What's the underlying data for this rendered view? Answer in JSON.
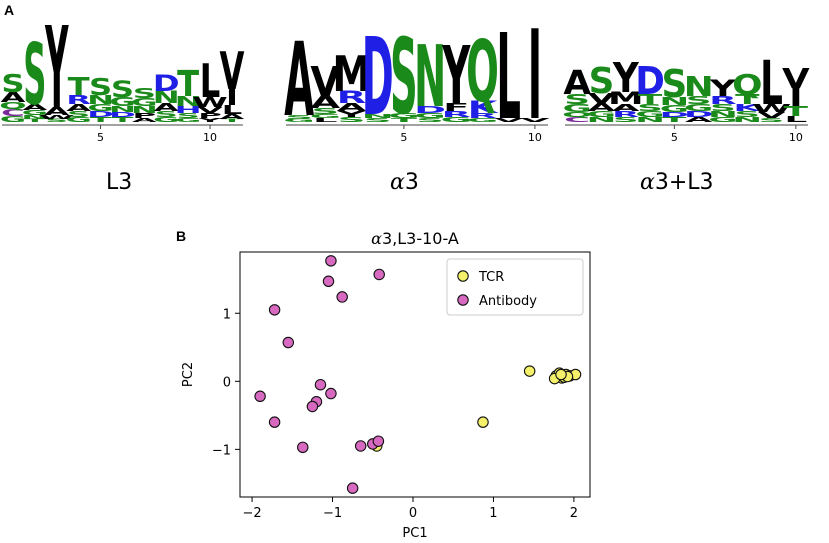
{
  "panel_a_label": "A",
  "panel_b_label": "B",
  "logos": [
    {
      "caption": "L3",
      "tick_labels": [
        "5",
        "10"
      ],
      "columns": [
        {
          "letters": [
            {
              "c": "S",
              "k": "p",
              "h": 0.18
            },
            {
              "c": "A",
              "k": "h",
              "h": 0.1
            },
            {
              "c": "C",
              "k": "n",
              "h": 0.07
            },
            {
              "c": "Q",
              "k": "p",
              "h": 0.07
            },
            {
              "c": "G",
              "k": "p",
              "h": 0.06
            }
          ]
        },
        {
          "letters": [
            {
              "c": "S",
              "k": "p",
              "h": 0.62
            },
            {
              "c": "A",
              "k": "h",
              "h": 0.06
            },
            {
              "c": "G",
              "k": "p",
              "h": 0.05
            },
            {
              "c": "N",
              "k": "p",
              "h": 0.04
            },
            {
              "c": "T",
              "k": "p",
              "h": 0.03
            }
          ]
        },
        {
          "letters": [
            {
              "c": "Y",
              "k": "h",
              "h": 0.82
            },
            {
              "c": "A",
              "k": "h",
              "h": 0.08
            },
            {
              "c": "W",
              "k": "h",
              "h": 0.04
            },
            {
              "c": "S",
              "k": "p",
              "h": 0.03
            }
          ]
        },
        {
          "letters": [
            {
              "c": "T",
              "k": "p",
              "h": 0.18
            },
            {
              "c": "R",
              "k": "b",
              "h": 0.09
            },
            {
              "c": "A",
              "k": "h",
              "h": 0.07
            },
            {
              "c": "S",
              "k": "p",
              "h": 0.06
            },
            {
              "c": "G",
              "k": "p",
              "h": 0.05
            }
          ]
        },
        {
          "letters": [
            {
              "c": "S",
              "k": "p",
              "h": 0.17
            },
            {
              "c": "N",
              "k": "p",
              "h": 0.09
            },
            {
              "c": "G",
              "k": "p",
              "h": 0.07
            },
            {
              "c": "D",
              "k": "b",
              "h": 0.06
            },
            {
              "c": "T",
              "k": "p",
              "h": 0.05
            }
          ]
        },
        {
          "letters": [
            {
              "c": "S",
              "k": "p",
              "h": 0.16
            },
            {
              "c": "G",
              "k": "p",
              "h": 0.09
            },
            {
              "c": "N",
              "k": "p",
              "h": 0.06
            },
            {
              "c": "T",
              "k": "p",
              "h": 0.05
            },
            {
              "c": "D",
              "k": "b",
              "h": 0.05
            }
          ]
        },
        {
          "letters": [
            {
              "c": "S",
              "k": "p",
              "h": 0.1
            },
            {
              "c": "G",
              "k": "p",
              "h": 0.08
            },
            {
              "c": "N",
              "k": "p",
              "h": 0.07
            },
            {
              "c": "P",
              "k": "h",
              "h": 0.05
            },
            {
              "c": "A",
              "k": "h",
              "h": 0.04
            }
          ]
        },
        {
          "letters": [
            {
              "c": "D",
              "k": "b",
              "h": 0.16
            },
            {
              "c": "N",
              "k": "p",
              "h": 0.12
            },
            {
              "c": "A",
              "k": "h",
              "h": 0.08
            },
            {
              "c": "S",
              "k": "p",
              "h": 0.06
            },
            {
              "c": "G",
              "k": "p",
              "h": 0.05
            }
          ]
        },
        {
          "letters": [
            {
              "c": "T",
              "k": "p",
              "h": 0.26
            },
            {
              "c": "N",
              "k": "p",
              "h": 0.1
            },
            {
              "c": "H",
              "k": "b",
              "h": 0.07
            },
            {
              "c": "S",
              "k": "p",
              "h": 0.05
            },
            {
              "c": "G",
              "k": "p",
              "h": 0.04
            }
          ]
        },
        {
          "letters": [
            {
              "c": "L",
              "k": "h",
              "h": 0.34
            },
            {
              "c": "W",
              "k": "h",
              "h": 0.1
            },
            {
              "c": "V",
              "k": "h",
              "h": 0.06
            },
            {
              "c": "P",
              "k": "h",
              "h": 0.05
            },
            {
              "c": "Y",
              "k": "h",
              "h": 0.04
            }
          ]
        },
        {
          "letters": [
            {
              "c": "V",
              "k": "h",
              "h": 0.38
            },
            {
              "c": "I",
              "k": "h",
              "h": 0.16
            },
            {
              "c": "L",
              "k": "h",
              "h": 0.09
            },
            {
              "c": "A",
              "k": "h",
              "h": 0.05
            },
            {
              "c": "T",
              "k": "p",
              "h": 0.03
            }
          ]
        }
      ]
    },
    {
      "caption_greek": "α",
      "caption": "3",
      "tick_labels": [
        "5",
        "10"
      ],
      "columns": [
        {
          "letters": [
            {
              "c": "A",
              "k": "h",
              "h": 0.74
            },
            {
              "c": "S",
              "k": "p",
              "h": 0.04
            },
            {
              "c": "G",
              "k": "p",
              "h": 0.03
            }
          ]
        },
        {
          "letters": [
            {
              "c": "V",
              "k": "h",
              "h": 0.3
            },
            {
              "c": "A",
              "k": "h",
              "h": 0.12
            },
            {
              "c": "S",
              "k": "p",
              "h": 0.06
            },
            {
              "c": "L",
              "k": "h",
              "h": 0.04
            },
            {
              "c": "G",
              "k": "p",
              "h": 0.04
            }
          ]
        },
        {
          "letters": [
            {
              "c": "M",
              "k": "h",
              "h": 0.36
            },
            {
              "c": "R",
              "k": "b",
              "h": 0.12
            },
            {
              "c": "A",
              "k": "h",
              "h": 0.08
            },
            {
              "c": "Y",
              "k": "h",
              "h": 0.06
            },
            {
              "c": "S",
              "k": "p",
              "h": 0.05
            }
          ]
        },
        {
          "letters": [
            {
              "c": "D",
              "k": "b",
              "h": 0.78
            },
            {
              "c": "S",
              "k": "p",
              "h": 0.04
            },
            {
              "c": "N",
              "k": "p",
              "h": 0.04
            }
          ]
        },
        {
          "letters": [
            {
              "c": "S",
              "k": "p",
              "h": 0.76
            },
            {
              "c": "G",
              "k": "p",
              "h": 0.05
            },
            {
              "c": "T",
              "k": "p",
              "h": 0.04
            }
          ]
        },
        {
          "letters": [
            {
              "c": "N",
              "k": "p",
              "h": 0.62
            },
            {
              "c": "D",
              "k": "b",
              "h": 0.07
            },
            {
              "c": "G",
              "k": "p",
              "h": 0.05
            },
            {
              "c": "S",
              "k": "p",
              "h": 0.04
            }
          ]
        },
        {
          "letters": [
            {
              "c": "Y",
              "k": "h",
              "h": 0.58
            },
            {
              "c": "F",
              "k": "h",
              "h": 0.08
            },
            {
              "c": "R",
              "k": "b",
              "h": 0.06
            },
            {
              "c": "G",
              "k": "p",
              "h": 0.05
            }
          ]
        },
        {
          "letters": [
            {
              "c": "Q",
              "k": "p",
              "h": 0.62
            },
            {
              "c": "K",
              "k": "b",
              "h": 0.12
            },
            {
              "c": "R",
              "k": "b",
              "h": 0.05
            },
            {
              "c": "G",
              "k": "p",
              "h": 0.04
            }
          ]
        },
        {
          "letters": [
            {
              "c": "L",
              "k": "h",
              "h": 0.86
            },
            {
              "c": "V",
              "k": "h",
              "h": 0.04
            }
          ]
        },
        {
          "letters": [
            {
              "c": "I",
              "k": "h",
              "h": 0.9
            },
            {
              "c": "V",
              "k": "h",
              "h": 0.04
            }
          ]
        }
      ]
    },
    {
      "caption_greek": "α",
      "caption": "3+L3",
      "tick_labels": [
        "5",
        "10"
      ],
      "columns": [
        {
          "letters": [
            {
              "c": "A",
              "k": "h",
              "h": 0.24
            },
            {
              "c": "S",
              "k": "p",
              "h": 0.1
            },
            {
              "c": "G",
              "k": "p",
              "h": 0.08
            },
            {
              "c": "C",
              "k": "n",
              "h": 0.05
            },
            {
              "c": "Q",
              "k": "p",
              "h": 0.05
            }
          ]
        },
        {
          "letters": [
            {
              "c": "S",
              "k": "p",
              "h": 0.26
            },
            {
              "c": "V",
              "k": "h",
              "h": 0.1
            },
            {
              "c": "A",
              "k": "h",
              "h": 0.08
            },
            {
              "c": "G",
              "k": "p",
              "h": 0.06
            },
            {
              "c": "N",
              "k": "p",
              "h": 0.05
            }
          ]
        },
        {
          "letters": [
            {
              "c": "Y",
              "k": "h",
              "h": 0.3
            },
            {
              "c": "M",
              "k": "h",
              "h": 0.12
            },
            {
              "c": "A",
              "k": "h",
              "h": 0.07
            },
            {
              "c": "R",
              "k": "b",
              "h": 0.06
            },
            {
              "c": "S",
              "k": "p",
              "h": 0.05
            }
          ]
        },
        {
          "letters": [
            {
              "c": "D",
              "k": "b",
              "h": 0.28
            },
            {
              "c": "T",
              "k": "p",
              "h": 0.1
            },
            {
              "c": "S",
              "k": "p",
              "h": 0.07
            },
            {
              "c": "G",
              "k": "p",
              "h": 0.06
            },
            {
              "c": "N",
              "k": "p",
              "h": 0.05
            }
          ]
        },
        {
          "letters": [
            {
              "c": "S",
              "k": "p",
              "h": 0.28
            },
            {
              "c": "N",
              "k": "p",
              "h": 0.08
            },
            {
              "c": "G",
              "k": "p",
              "h": 0.07
            },
            {
              "c": "T",
              "k": "p",
              "h": 0.05
            },
            {
              "c": "D",
              "k": "b",
              "h": 0.05
            }
          ]
        },
        {
          "letters": [
            {
              "c": "N",
              "k": "p",
              "h": 0.2
            },
            {
              "c": "S",
              "k": "p",
              "h": 0.08
            },
            {
              "c": "G",
              "k": "p",
              "h": 0.07
            },
            {
              "c": "D",
              "k": "b",
              "h": 0.06
            },
            {
              "c": "A",
              "k": "h",
              "h": 0.05
            }
          ]
        },
        {
          "letters": [
            {
              "c": "Y",
              "k": "h",
              "h": 0.16
            },
            {
              "c": "R",
              "k": "b",
              "h": 0.08
            },
            {
              "c": "S",
              "k": "p",
              "h": 0.07
            },
            {
              "c": "N",
              "k": "p",
              "h": 0.06
            },
            {
              "c": "G",
              "k": "p",
              "h": 0.05
            }
          ]
        },
        {
          "letters": [
            {
              "c": "Q",
              "k": "p",
              "h": 0.2
            },
            {
              "c": "T",
              "k": "p",
              "h": 0.1
            },
            {
              "c": "K",
              "k": "b",
              "h": 0.07
            },
            {
              "c": "S",
              "k": "p",
              "h": 0.06
            },
            {
              "c": "N",
              "k": "p",
              "h": 0.05
            }
          ]
        },
        {
          "letters": [
            {
              "c": "L",
              "k": "h",
              "h": 0.44
            },
            {
              "c": "W",
              "k": "h",
              "h": 0.08
            },
            {
              "c": "V",
              "k": "h",
              "h": 0.06
            },
            {
              "c": "S",
              "k": "p",
              "h": 0.04
            }
          ]
        },
        {
          "letters": [
            {
              "c": "T",
              "k": "p",
              "h": 0.1
            },
            {
              "c": "V",
              "k": "h",
              "h": 0.2
            },
            {
              "c": "I",
              "k": "h",
              "h": 0.18
            },
            {
              "c": "L",
              "k": "h",
              "h": 0.06
            }
          ]
        }
      ]
    }
  ],
  "colors": {
    "hydrophobic": "#000000",
    "polar": "#1a8a1a",
    "basic": "#1f1fe6",
    "acidic": "#c81e1e",
    "neutral": "#7a2a9a",
    "tcr_fill": "#f5f06a",
    "antibody_fill": "#d869c0",
    "marker_edge": "#111111"
  },
  "chart_data": {
    "type": "scatter",
    "title_greek": "α",
    "title": "3,L3-10-A",
    "xlabel": "PC1",
    "ylabel": "PC2",
    "xlim": [
      -2.15,
      2.2
    ],
    "ylim": [
      -1.7,
      1.9
    ],
    "xticks": [
      -2,
      -1,
      0,
      1,
      2
    ],
    "xtick_labels": [
      "−2",
      "−1",
      "0",
      "1",
      "2"
    ],
    "yticks": [
      -1,
      0,
      1
    ],
    "ytick_labels": [
      "−1",
      "0",
      "1"
    ],
    "legend_position": "top-right",
    "grid": false,
    "series": [
      {
        "name": "TCR",
        "color_key": "tcr_fill",
        "points": [
          [
            1.45,
            0.15
          ],
          [
            0.87,
            -0.6
          ],
          [
            1.78,
            0.08
          ],
          [
            1.82,
            0.12
          ],
          [
            1.85,
            0.05
          ],
          [
            1.9,
            0.1
          ],
          [
            1.88,
            0.06
          ],
          [
            1.95,
            0.08
          ],
          [
            2.02,
            0.1
          ],
          [
            1.76,
            0.04
          ],
          [
            1.92,
            0.07
          ],
          [
            1.84,
            0.1
          ],
          [
            -0.45,
            -0.95
          ]
        ]
      },
      {
        "name": "Antibody",
        "color_key": "antibody_fill",
        "points": [
          [
            -1.02,
            1.77
          ],
          [
            -1.05,
            1.47
          ],
          [
            -0.88,
            1.24
          ],
          [
            -0.42,
            1.57
          ],
          [
            -1.72,
            1.05
          ],
          [
            -1.55,
            0.57
          ],
          [
            -1.15,
            -0.05
          ],
          [
            -1.02,
            -0.18
          ],
          [
            -1.2,
            -0.3
          ],
          [
            -1.25,
            -0.37
          ],
          [
            -1.9,
            -0.22
          ],
          [
            -1.72,
            -0.6
          ],
          [
            -1.37,
            -0.97
          ],
          [
            -0.65,
            -0.95
          ],
          [
            -0.5,
            -0.92
          ],
          [
            -0.43,
            -0.88
          ],
          [
            -0.75,
            -1.57
          ]
        ]
      }
    ]
  }
}
